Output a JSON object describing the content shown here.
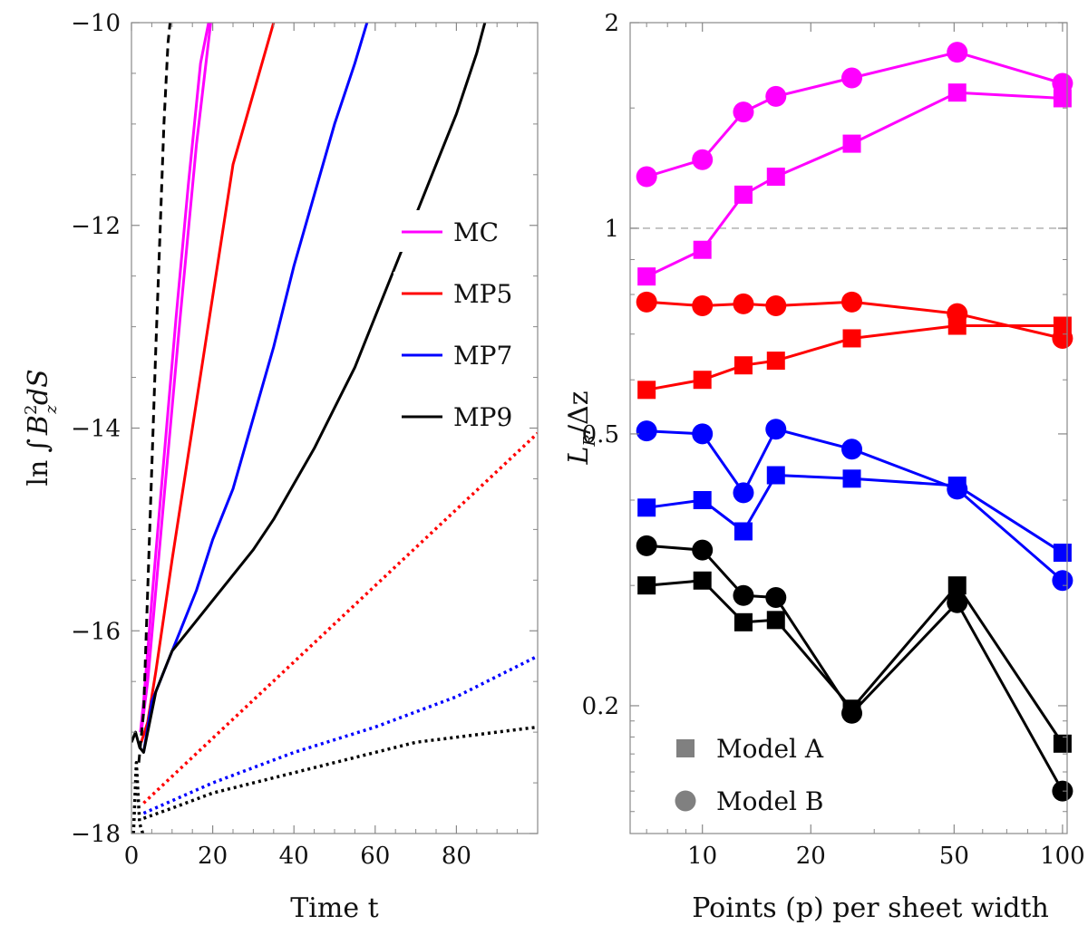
{
  "chart_data": [
    {
      "type": "line",
      "title": "",
      "xlabel": "Time t",
      "ylabel_parts": {
        "prefix": "ln",
        "integral": "∫",
        "var": "B",
        "sup": "2",
        "sub": "z",
        "suffix": "dS"
      },
      "xlim": [
        0,
        100
      ],
      "ylim": [
        -18,
        -10
      ],
      "xticks": [
        0,
        20,
        40,
        60,
        80
      ],
      "yticks": [
        -18,
        -16,
        -14,
        -12,
        -10
      ],
      "xtick_labels": [
        "0",
        "20",
        "40",
        "60",
        "80"
      ],
      "ytick_labels": [
        "−18",
        "−16",
        "−14",
        "−12",
        "−10"
      ],
      "legend": {
        "position": "right-middle",
        "entries": [
          {
            "name": "MC",
            "color": "#ff00ff"
          },
          {
            "name": "MP5",
            "color": "#ff0000"
          },
          {
            "name": "MP7",
            "color": "#0000ff"
          },
          {
            "name": "MP9",
            "color": "#000000"
          }
        ]
      },
      "series": [
        {
          "name": "MC solid",
          "color": "#ff00ff",
          "style": "solid",
          "x": [
            2.2,
            3,
            5,
            8,
            11,
            14,
            17,
            19
          ],
          "y": [
            -17.0,
            -16.7,
            -15.7,
            -14.3,
            -12.9,
            -11.6,
            -10.4,
            -10.0
          ]
        },
        {
          "name": "MC solid (second)",
          "color": "#ff00ff",
          "style": "solid",
          "x": [
            2.4,
            4,
            8,
            12,
            16,
            19.5
          ],
          "y": [
            -17.0,
            -16.5,
            -14.7,
            -12.9,
            -11.2,
            -10.0
          ]
        },
        {
          "name": "MP5 solid",
          "color": "#ff0000",
          "style": "solid",
          "x": [
            2.4,
            4,
            6,
            10,
            15,
            20,
            25,
            30,
            35
          ],
          "y": [
            -17.1,
            -16.9,
            -16.4,
            -15.3,
            -14.0,
            -12.7,
            -11.4,
            -10.7,
            -10.0
          ]
        },
        {
          "name": "MP7 solid",
          "color": "#0000ff",
          "style": "solid",
          "x": [
            3,
            5,
            7,
            9,
            12,
            16,
            20,
            25,
            30,
            35,
            40,
            45,
            50,
            55,
            58
          ],
          "y": [
            -17.2,
            -16.7,
            -16.5,
            -16.3,
            -16.0,
            -15.6,
            -15.1,
            -14.6,
            -13.9,
            -13.2,
            -12.4,
            -11.7,
            -11.0,
            -10.4,
            -10.0
          ]
        },
        {
          "name": "MP9 solid",
          "color": "#000000",
          "style": "solid",
          "x": [
            0,
            1,
            2,
            3,
            4,
            5,
            6,
            7,
            8,
            10,
            15,
            20,
            25,
            30,
            35,
            40,
            45,
            50,
            55,
            60,
            65,
            70,
            75,
            80,
            85,
            87
          ],
          "y": [
            -17.1,
            -17.0,
            -17.15,
            -17.2,
            -17.0,
            -16.8,
            -16.6,
            -16.5,
            -16.4,
            -16.2,
            -15.95,
            -15.7,
            -15.45,
            -15.2,
            -14.9,
            -14.55,
            -14.2,
            -13.8,
            -13.4,
            -12.9,
            -12.4,
            -11.9,
            -11.4,
            -10.9,
            -10.3,
            -10.0
          ]
        },
        {
          "name": "MP9 dashed",
          "color": "#000000",
          "style": "dashed",
          "x": [
            1.8,
            3,
            4,
            5,
            6,
            7,
            8,
            9,
            9.5
          ],
          "y": [
            -17.3,
            -16.8,
            -15.6,
            -14.4,
            -13.2,
            -12.1,
            -11.0,
            -10.2,
            -10.0
          ]
        },
        {
          "name": "MP5 dotted",
          "color": "#ff0000",
          "style": "dotted",
          "x": [
            3,
            100
          ],
          "y": [
            -17.7,
            -14.05
          ]
        },
        {
          "name": "MP7 dotted",
          "color": "#0000ff",
          "style": "dotted",
          "x": [
            3,
            20,
            40,
            60,
            80,
            100
          ],
          "y": [
            -17.8,
            -17.5,
            -17.2,
            -16.95,
            -16.65,
            -16.25
          ]
        },
        {
          "name": "MP9 dotted",
          "color": "#000000",
          "style": "dotted",
          "x": [
            3,
            10,
            20,
            30,
            40,
            50,
            60,
            70,
            80,
            90,
            100
          ],
          "y": [
            -17.85,
            -17.75,
            -17.6,
            -17.5,
            -17.4,
            -17.3,
            -17.2,
            -17.1,
            -17.05,
            -17.0,
            -16.95
          ]
        },
        {
          "name": "initial transient dotted",
          "color": "#000000",
          "style": "dotted",
          "x": [
            0.5,
            1.2,
            2.0,
            2.8
          ],
          "y": [
            -18.0,
            -17.3,
            -17.9,
            -18.0
          ]
        }
      ]
    },
    {
      "type": "scatter",
      "title": "",
      "xlabel": "Points (p) per sheet width",
      "ylabel_parts": {
        "main": "L",
        "sub": "R",
        "suffix": "/Δz"
      },
      "xscale": "log",
      "yscale": "log",
      "xlim": [
        6.3,
        103
      ],
      "ylim": [
        0.13,
        2.0
      ],
      "xticks": [
        10,
        20,
        50,
        100
      ],
      "yticks": [
        0.2,
        0.5,
        1,
        2
      ],
      "xtick_labels": [
        "10",
        "20",
        "50",
        "100"
      ],
      "ytick_labels": [
        "0.2",
        "0.5",
        "1",
        "2"
      ],
      "reference_line": {
        "y": 1,
        "style": "dashed",
        "color": "#aaaaaa"
      },
      "legend": {
        "position": "bottom-left",
        "entries": [
          {
            "name": "Model A",
            "marker": "square",
            "color": "#808080"
          },
          {
            "name": "Model B",
            "marker": "circle",
            "color": "#808080"
          }
        ]
      },
      "x": [
        7,
        10,
        13,
        16,
        26,
        51,
        100
      ],
      "series": [
        {
          "name": "MC Model A",
          "color": "#ff00ff",
          "marker": "square",
          "values": [
            0.85,
            0.93,
            1.12,
            1.19,
            1.33,
            1.58,
            1.55
          ]
        },
        {
          "name": "MC Model B",
          "color": "#ff00ff",
          "marker": "circle",
          "values": [
            1.19,
            1.26,
            1.48,
            1.56,
            1.66,
            1.81,
            1.63
          ]
        },
        {
          "name": "MP5 Model A",
          "color": "#ff0000",
          "marker": "square",
          "values": [
            0.58,
            0.6,
            0.63,
            0.64,
            0.69,
            0.72,
            0.72
          ]
        },
        {
          "name": "MP5 Model B",
          "color": "#ff0000",
          "marker": "circle",
          "values": [
            0.78,
            0.77,
            0.775,
            0.77,
            0.78,
            0.75,
            0.69
          ]
        },
        {
          "name": "MP7 Model A",
          "color": "#0000ff",
          "marker": "square",
          "values": [
            0.39,
            0.4,
            0.36,
            0.435,
            0.43,
            0.42,
            0.335
          ]
        },
        {
          "name": "MP7 Model B",
          "color": "#0000ff",
          "marker": "circle",
          "values": [
            0.505,
            0.5,
            0.41,
            0.508,
            0.475,
            0.415,
            0.305
          ]
        },
        {
          "name": "MP9 Model A",
          "color": "#000000",
          "marker": "square",
          "values": [
            0.3,
            0.305,
            0.265,
            0.267,
            0.198,
            0.3,
            0.176
          ]
        },
        {
          "name": "MP9 Model B",
          "color": "#000000",
          "marker": "circle",
          "values": [
            0.343,
            0.338,
            0.29,
            0.288,
            0.195,
            0.283,
            0.15
          ]
        }
      ]
    }
  ]
}
